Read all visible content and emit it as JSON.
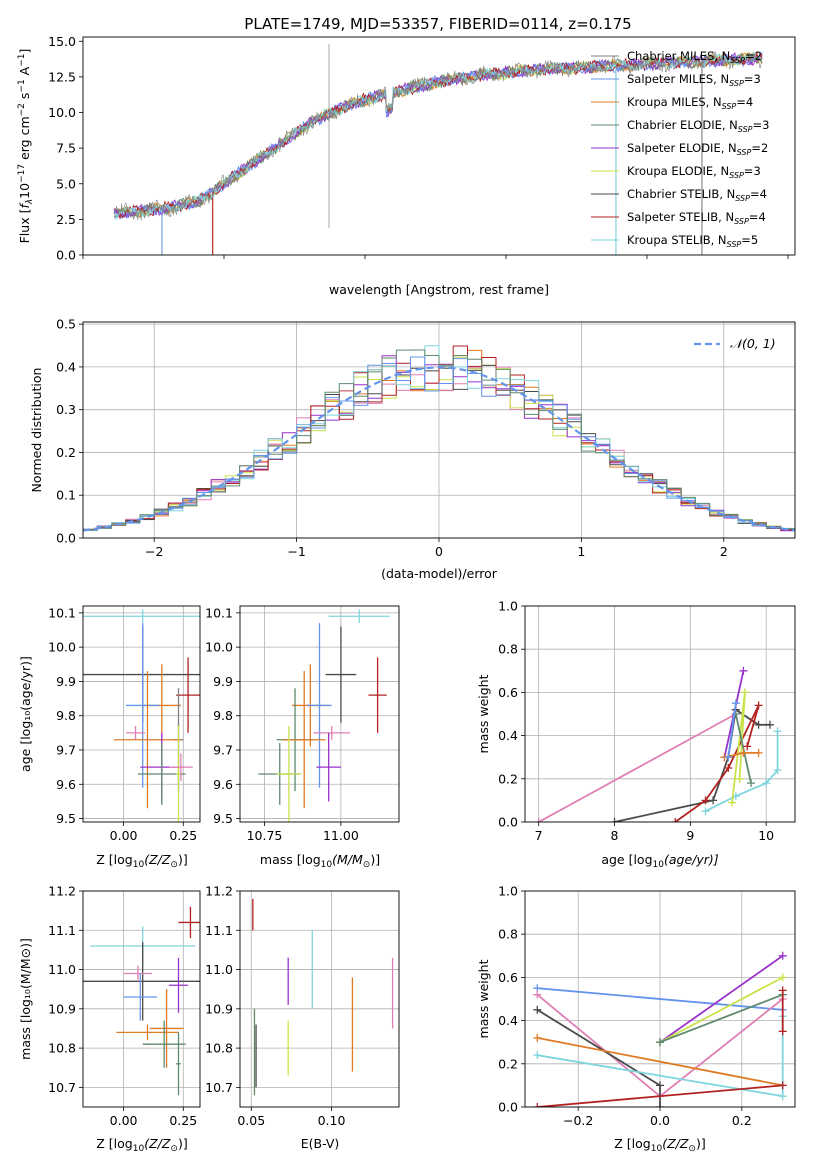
{
  "figure_title": "PLATE=1749, MJD=53357, FIBERID=0114, z=0.175",
  "colors": {
    "chabrier_miles": "#808080",
    "salpeter_miles": "#6495ed",
    "kroupa_miles": "#e07b24",
    "chabrier_elodie": "#5f8a6e",
    "salpeter_elodie": "#9932cc",
    "kroupa_elodie": "#c8e34a",
    "chabrier_stelib": "#4a4a4a",
    "salpeter_stelib": "#b22222",
    "kroupa_stelib": "#7fd4de",
    "pink": "#e07fb5",
    "normal_curve": "#6495ed",
    "grid": "#b0b0b0"
  },
  "chart_data": [
    {
      "id": "spectrum",
      "type": "line",
      "xlabel": "wavelength [Angstrom, rest frame]",
      "ylabel_parts": [
        "Flux [",
        "f",
        "λ",
        "10",
        "−17",
        " erg cm",
        "−2",
        " s",
        "−1",
        " A",
        "−1",
        "]"
      ],
      "xlim": [
        3000,
        8050
      ],
      "ylim": [
        0,
        15.3
      ],
      "xticks": [
        3000,
        4000,
        5000,
        6000,
        7000,
        8000
      ],
      "yticks": [
        0.0,
        2.5,
        5.0,
        7.5,
        10.0,
        12.5,
        15.0
      ],
      "ytick_labels": [
        "0.0",
        "2.5",
        "5.0",
        "7.5",
        "10.0",
        "12.5",
        "15.0"
      ],
      "grid": false,
      "legend_position": "right",
      "continuum_x": [
        3220,
        3400,
        3600,
        3800,
        3950,
        4050,
        4200,
        4400,
        4600,
        4800,
        5000,
        5200,
        5400,
        5600,
        5800,
        6000,
        6200,
        6400,
        6600,
        6800,
        7000,
        7200,
        7400,
        7600,
        7820
      ],
      "continuum_y": [
        2.9,
        3.1,
        3.3,
        3.7,
        4.6,
        5.4,
        6.4,
        7.8,
        9.2,
        10.2,
        10.9,
        11.4,
        11.9,
        12.3,
        12.6,
        12.8,
        13.0,
        13.1,
        13.2,
        13.3,
        13.4,
        13.5,
        13.6,
        13.7,
        13.8
      ],
      "spike_x": 4745,
      "spike_range": [
        1.9,
        14.8
      ],
      "model_drops_x": [
        3560,
        3920,
        6780,
        7390
      ],
      "legend": [
        {
          "name": "Chabrier MILES",
          "nssp": "2",
          "color_key": "chabrier_miles"
        },
        {
          "name": "Salpeter MILES",
          "nssp": "3",
          "color_key": "salpeter_miles"
        },
        {
          "name": "Kroupa MILES",
          "nssp": "4",
          "color_key": "kroupa_miles"
        },
        {
          "name": "Chabrier ELODIE",
          "nssp": "3",
          "color_key": "chabrier_elodie"
        },
        {
          "name": "Salpeter ELODIE",
          "nssp": "2",
          "color_key": "salpeter_elodie"
        },
        {
          "name": "Kroupa ELODIE",
          "nssp": "3",
          "color_key": "kroupa_elodie"
        },
        {
          "name": "Chabrier STELIB",
          "nssp": "4",
          "color_key": "chabrier_stelib"
        },
        {
          "name": "Salpeter STELIB",
          "nssp": "4",
          "color_key": "salpeter_stelib"
        },
        {
          "name": "Kroupa STELIB",
          "nssp": "5",
          "color_key": "kroupa_stelib"
        }
      ],
      "nssp_sub": "SSP"
    },
    {
      "id": "residuals",
      "type": "histogram",
      "xlabel": "(data-model)/error",
      "ylabel": "Normed distribution",
      "xlim": [
        -2.5,
        2.5
      ],
      "ylim": [
        0,
        0.505
      ],
      "xticks": [
        -2,
        -1,
        0,
        1,
        2
      ],
      "xtick_labels": [
        "−2",
        "−1",
        "0",
        "1",
        "2"
      ],
      "yticks": [
        0.0,
        0.1,
        0.2,
        0.3,
        0.4,
        0.5
      ],
      "ytick_labels": [
        "0.0",
        "0.1",
        "0.2",
        "0.3",
        "0.4",
        "0.5"
      ],
      "grid": true,
      "legend_label": "𝒩(0, 1)",
      "bin_width": 0.1,
      "bin_start": -2.5,
      "bin_count": 50
    },
    {
      "id": "z-age",
      "type": "errorbar",
      "xlabel_main": "Z [log",
      "xlabel_sub": "10",
      "xlabel_rest": "(Z/Z",
      "xlabel_sun": "⊙",
      "xlabel_end": ")]",
      "ylabel": "age  [log₁₀(age/yr)]",
      "xlim": [
        -0.17,
        0.32
      ],
      "ylim": [
        9.49,
        10.12
      ],
      "xticks": [
        0.0,
        0.25
      ],
      "xtick_labels": [
        "0.00",
        "0.25"
      ],
      "yticks": [
        9.5,
        9.6,
        9.7,
        9.8,
        9.9,
        10.0,
        10.1
      ],
      "ytick_labels": [
        "9.5",
        "9.6",
        "9.7",
        "9.8",
        "9.9",
        "10.0",
        "10.1"
      ],
      "points": [
        {
          "x": 0.08,
          "y": 10.09,
          "xerr": 0.25,
          "yerr": 0.02,
          "color_key": "kroupa_stelib"
        },
        {
          "x": 0.08,
          "y": 9.92,
          "xerr": 0.25,
          "yerr": 0.14,
          "color_key": "chabrier_stelib"
        },
        {
          "x": 0.27,
          "y": 9.86,
          "xerr": 0.05,
          "yerr": 0.11,
          "color_key": "salpeter_stelib"
        },
        {
          "x": 0.16,
          "y": 9.83,
          "xerr": 0.08,
          "yerr": 0.12,
          "color_key": "kroupa_miles"
        },
        {
          "x": 0.08,
          "y": 9.83,
          "xerr": 0.07,
          "yerr": 0.24,
          "color_key": "salpeter_miles"
        },
        {
          "x": 0.23,
          "y": 9.73,
          "xerr": 0.02,
          "yerr": 0.15,
          "color_key": "chabrier_miles"
        },
        {
          "x": 0.1,
          "y": 9.73,
          "xerr": 0.14,
          "yerr": 0.2,
          "color_key": "kroupa_miles"
        },
        {
          "x": 0.05,
          "y": 9.75,
          "xerr": 0.04,
          "yerr": 0.02,
          "color_key": "pink"
        },
        {
          "x": 0.16,
          "y": 9.65,
          "xerr": 0.09,
          "yerr": 0.1,
          "color_key": "salpeter_elodie"
        },
        {
          "x": 0.16,
          "y": 9.63,
          "xerr": 0.1,
          "yerr": 0.09,
          "color_key": "chabrier_elodie"
        },
        {
          "x": 0.23,
          "y": 9.63,
          "xerr": 0.01,
          "yerr": 0.14,
          "color_key": "kroupa_elodie"
        },
        {
          "x": 0.24,
          "y": 9.65,
          "xerr": 0.05,
          "yerr": 0.04,
          "color_key": "pink"
        }
      ]
    },
    {
      "id": "mass-age",
      "type": "errorbar",
      "xlabel_main": "mass [log",
      "xlabel_sub": "10",
      "xlabel_rest": "(M/M",
      "xlabel_sun": "⊙",
      "xlabel_end": ")]",
      "xlim": [
        10.67,
        11.19
      ],
      "ylim": [
        9.49,
        10.12
      ],
      "xticks": [
        10.75,
        11.0
      ],
      "xtick_labels": [
        "10.75",
        "11.00"
      ],
      "yticks": [
        9.5,
        9.6,
        9.7,
        9.8,
        9.9,
        10.0,
        10.1
      ],
      "ytick_labels": [
        "9.5",
        "9.6",
        "9.7",
        "9.8",
        "9.9",
        "10.0",
        "10.1"
      ],
      "points": [
        {
          "x": 11.06,
          "y": 10.09,
          "xerr": 0.1,
          "yerr": 0.02,
          "color_key": "kroupa_stelib"
        },
        {
          "x": 11.0,
          "y": 9.92,
          "xerr": 0.05,
          "yerr": 0.14,
          "color_key": "chabrier_stelib"
        },
        {
          "x": 11.12,
          "y": 9.86,
          "xerr": 0.03,
          "yerr": 0.11,
          "color_key": "salpeter_stelib"
        },
        {
          "x": 10.9,
          "y": 9.83,
          "xerr": 0.06,
          "yerr": 0.12,
          "color_key": "kroupa_miles"
        },
        {
          "x": 10.93,
          "y": 9.83,
          "xerr": 0.04,
          "yerr": 0.24,
          "color_key": "salpeter_miles"
        },
        {
          "x": 10.85,
          "y": 9.73,
          "xerr": 0.06,
          "yerr": 0.15,
          "color_key": "chabrier_elodie"
        },
        {
          "x": 10.88,
          "y": 9.73,
          "xerr": 0.07,
          "yerr": 0.2,
          "color_key": "kroupa_miles"
        },
        {
          "x": 10.97,
          "y": 9.75,
          "xerr": 0.06,
          "yerr": 0.02,
          "color_key": "pink"
        },
        {
          "x": 10.96,
          "y": 9.65,
          "xerr": 0.04,
          "yerr": 0.1,
          "color_key": "salpeter_elodie"
        },
        {
          "x": 10.8,
          "y": 9.63,
          "xerr": 0.07,
          "yerr": 0.09,
          "color_key": "chabrier_elodie"
        },
        {
          "x": 10.83,
          "y": 9.63,
          "xerr": 0.04,
          "yerr": 0.14,
          "color_key": "kroupa_elodie"
        }
      ]
    },
    {
      "id": "age-weight",
      "type": "line",
      "xlabel_main": "age  [log",
      "xlabel_sub": "10",
      "xlabel_rest": "(age/yr)]",
      "ylabel": "mass weight",
      "xlim": [
        6.82,
        10.38
      ],
      "ylim": [
        0,
        1.0
      ],
      "xticks": [
        7,
        8,
        9,
        10
      ],
      "xtick_labels": [
        "7",
        "8",
        "9",
        "10"
      ],
      "yticks": [
        0.0,
        0.2,
        0.4,
        0.6,
        0.8,
        1.0
      ],
      "ytick_labels": [
        "0.0",
        "0.2",
        "0.4",
        "0.6",
        "0.8",
        "1.0"
      ],
      "grid": true,
      "series": [
        {
          "color_key": "pink",
          "x": [
            7.0,
            9.6
          ],
          "y": [
            0.0,
            0.5
          ]
        },
        {
          "color_key": "chabrier_stelib",
          "x": [
            8.0,
            9.3,
            9.5,
            9.6,
            9.9,
            10.05
          ],
          "y": [
            0.0,
            0.1,
            0.3,
            0.52,
            0.45,
            0.45
          ]
        },
        {
          "color_key": "salpeter_stelib",
          "x": [
            8.8,
            9.2,
            9.5,
            9.9,
            9.75
          ],
          "y": [
            0.0,
            0.1,
            0.25,
            0.54,
            0.35
          ]
        },
        {
          "color_key": "kroupa_stelib",
          "x": [
            9.2,
            9.6,
            10.0,
            10.15,
            10.15
          ],
          "y": [
            0.05,
            0.12,
            0.18,
            0.24,
            0.42
          ]
        },
        {
          "color_key": "salpeter_elodie",
          "x": [
            9.45,
            9.7
          ],
          "y": [
            0.3,
            0.7
          ]
        },
        {
          "color_key": "kroupa_elodie",
          "x": [
            9.55,
            9.72,
            9.65
          ],
          "y": [
            0.09,
            0.6,
            0.2
          ]
        },
        {
          "color_key": "chabrier_elodie",
          "x": [
            9.6,
            9.8
          ],
          "y": [
            0.5,
            0.18
          ]
        },
        {
          "color_key": "kroupa_miles",
          "x": [
            9.45,
            9.7,
            9.9
          ],
          "y": [
            0.3,
            0.32,
            0.32
          ]
        },
        {
          "color_key": "salpeter_miles",
          "x": [
            9.5,
            9.6
          ],
          "y": [
            0.3,
            0.55
          ]
        }
      ]
    },
    {
      "id": "z-mass",
      "type": "errorbar",
      "xlabel_main": "Z [log",
      "xlabel_sub": "10",
      "xlabel_rest": "(Z/Z",
      "xlabel_sun": "⊙",
      "xlabel_end": ")]",
      "ylabel": "mass [log₁₀(M/M⊙)]",
      "xlim": [
        -0.17,
        0.32
      ],
      "ylim": [
        10.65,
        11.2
      ],
      "xticks": [
        0.0,
        0.25
      ],
      "xtick_labels": [
        "0.00",
        "0.25"
      ],
      "yticks": [
        10.7,
        10.8,
        10.9,
        11.0,
        11.1,
        11.2
      ],
      "ytick_labels": [
        "10.7",
        "10.8",
        "10.9",
        "11.0",
        "11.1",
        "11.2"
      ],
      "points": [
        {
          "x": 0.28,
          "y": 11.12,
          "xerr": 0.05,
          "yerr": 0.04,
          "color_key": "salpeter_stelib"
        },
        {
          "x": 0.08,
          "y": 11.06,
          "xerr": 0.22,
          "yerr": 0.05,
          "color_key": "kroupa_stelib"
        },
        {
          "x": 0.08,
          "y": 10.97,
          "xerr": 0.25,
          "yerr": 0.1,
          "color_key": "chabrier_stelib"
        },
        {
          "x": 0.06,
          "y": 10.99,
          "xerr": 0.06,
          "yerr": 0.02,
          "color_key": "pink"
        },
        {
          "x": 0.23,
          "y": 10.96,
          "xerr": 0.04,
          "yerr": 0.07,
          "color_key": "salpeter_elodie"
        },
        {
          "x": 0.07,
          "y": 10.93,
          "xerr": 0.07,
          "yerr": 0.06,
          "color_key": "salpeter_miles"
        },
        {
          "x": 0.18,
          "y": 10.85,
          "xerr": 0.07,
          "yerr": 0.1,
          "color_key": "kroupa_miles"
        },
        {
          "x": 0.1,
          "y": 10.84,
          "xerr": 0.13,
          "yerr": 0.02,
          "color_key": "kroupa_miles"
        },
        {
          "x": 0.17,
          "y": 10.81,
          "xerr": 0.09,
          "yerr": 0.06,
          "color_key": "chabrier_elodie"
        },
        {
          "x": 0.23,
          "y": 10.76,
          "xerr": 0.01,
          "yerr": 0.08,
          "color_key": "chabrier_elodie"
        }
      ]
    },
    {
      "id": "ebv-mass",
      "type": "errorbar",
      "xlabel": "E(B-V)",
      "xlim": [
        0.043,
        0.142
      ],
      "ylim": [
        10.65,
        11.2
      ],
      "xticks": [
        0.05,
        0.1
      ],
      "xtick_labels": [
        "0.05",
        "0.10"
      ],
      "yticks": [
        10.7,
        10.8,
        10.9,
        11.0,
        11.1,
        11.2
      ],
      "ytick_labels": [
        "10.7",
        "10.8",
        "10.9",
        "11.0",
        "11.1",
        "11.2"
      ],
      "points": [
        {
          "x": 0.051,
          "y": 11.14,
          "xerr": 0.0,
          "yerr": 0.04,
          "color_key": "salpeter_stelib"
        },
        {
          "x": 0.052,
          "y": 10.79,
          "xerr": 0.0,
          "yerr": 0.11,
          "color_key": "chabrier_elodie"
        },
        {
          "x": 0.053,
          "y": 10.78,
          "xerr": 0.0,
          "yerr": 0.08,
          "color_key": "chabrier_stelib"
        },
        {
          "x": 0.073,
          "y": 10.97,
          "xerr": 0.0,
          "yerr": 0.06,
          "color_key": "salpeter_elodie"
        },
        {
          "x": 0.073,
          "y": 10.8,
          "xerr": 0.0,
          "yerr": 0.07,
          "color_key": "kroupa_elodie"
        },
        {
          "x": 0.088,
          "y": 11.0,
          "xerr": 0.0,
          "yerr": 0.1,
          "color_key": "kroupa_stelib"
        },
        {
          "x": 0.113,
          "y": 10.86,
          "xerr": 0.0,
          "yerr": 0.12,
          "color_key": "kroupa_miles"
        },
        {
          "x": 0.138,
          "y": 10.94,
          "xerr": 0.0,
          "yerr": 0.09,
          "color_key": "pink"
        }
      ]
    },
    {
      "id": "z-weight",
      "type": "line",
      "xlabel_main": "Z [log",
      "xlabel_sub": "10",
      "xlabel_rest": "(Z/Z",
      "xlabel_sun": "⊙",
      "xlabel_end": ")]",
      "ylabel": "mass weight",
      "xlim": [
        -0.33,
        0.33
      ],
      "ylim": [
        0,
        1.0
      ],
      "xticks": [
        -0.2,
        0.0,
        0.2
      ],
      "xtick_labels": [
        "−0.2",
        "0.0",
        "0.2"
      ],
      "yticks": [
        0.0,
        0.2,
        0.4,
        0.6,
        0.8,
        1.0
      ],
      "ytick_labels": [
        "0.0",
        "0.2",
        "0.4",
        "0.6",
        "0.8",
        "1.0"
      ],
      "grid": true,
      "series": [
        {
          "color_key": "salpeter_miles",
          "x": [
            -0.3,
            0.3
          ],
          "y": [
            0.55,
            0.45
          ]
        },
        {
          "color_key": "pink",
          "x": [
            -0.3,
            0.0,
            0.3
          ],
          "y": [
            0.52,
            0.05,
            0.5
          ]
        },
        {
          "color_key": "chabrier_stelib",
          "x": [
            -0.3,
            0.0,
            0.0
          ],
          "y": [
            0.45,
            0.1,
            0.0
          ]
        },
        {
          "color_key": "kroupa_miles",
          "x": [
            -0.3,
            0.3
          ],
          "y": [
            0.32,
            0.1
          ]
        },
        {
          "color_key": "kroupa_stelib",
          "x": [
            -0.3,
            0.3,
            0.3
          ],
          "y": [
            0.24,
            0.05,
            0.42
          ]
        },
        {
          "color_key": "salpeter_stelib",
          "x": [
            -0.3,
            0.3
          ],
          "y": [
            0.0,
            0.1
          ]
        },
        {
          "color_key": "salpeter_elodie",
          "x": [
            0.0,
            0.3
          ],
          "y": [
            0.3,
            0.7
          ]
        },
        {
          "color_key": "kroupa_elodie",
          "x": [
            0.0,
            0.3
          ],
          "y": [
            0.3,
            0.6
          ]
        },
        {
          "color_key": "chabrier_elodie",
          "x": [
            0.0,
            0.3
          ],
          "y": [
            0.3,
            0.52
          ]
        },
        {
          "color_key": "salpeter_stelib",
          "x": [
            0.3,
            0.3
          ],
          "y": [
            0.35,
            0.54
          ]
        }
      ]
    }
  ]
}
